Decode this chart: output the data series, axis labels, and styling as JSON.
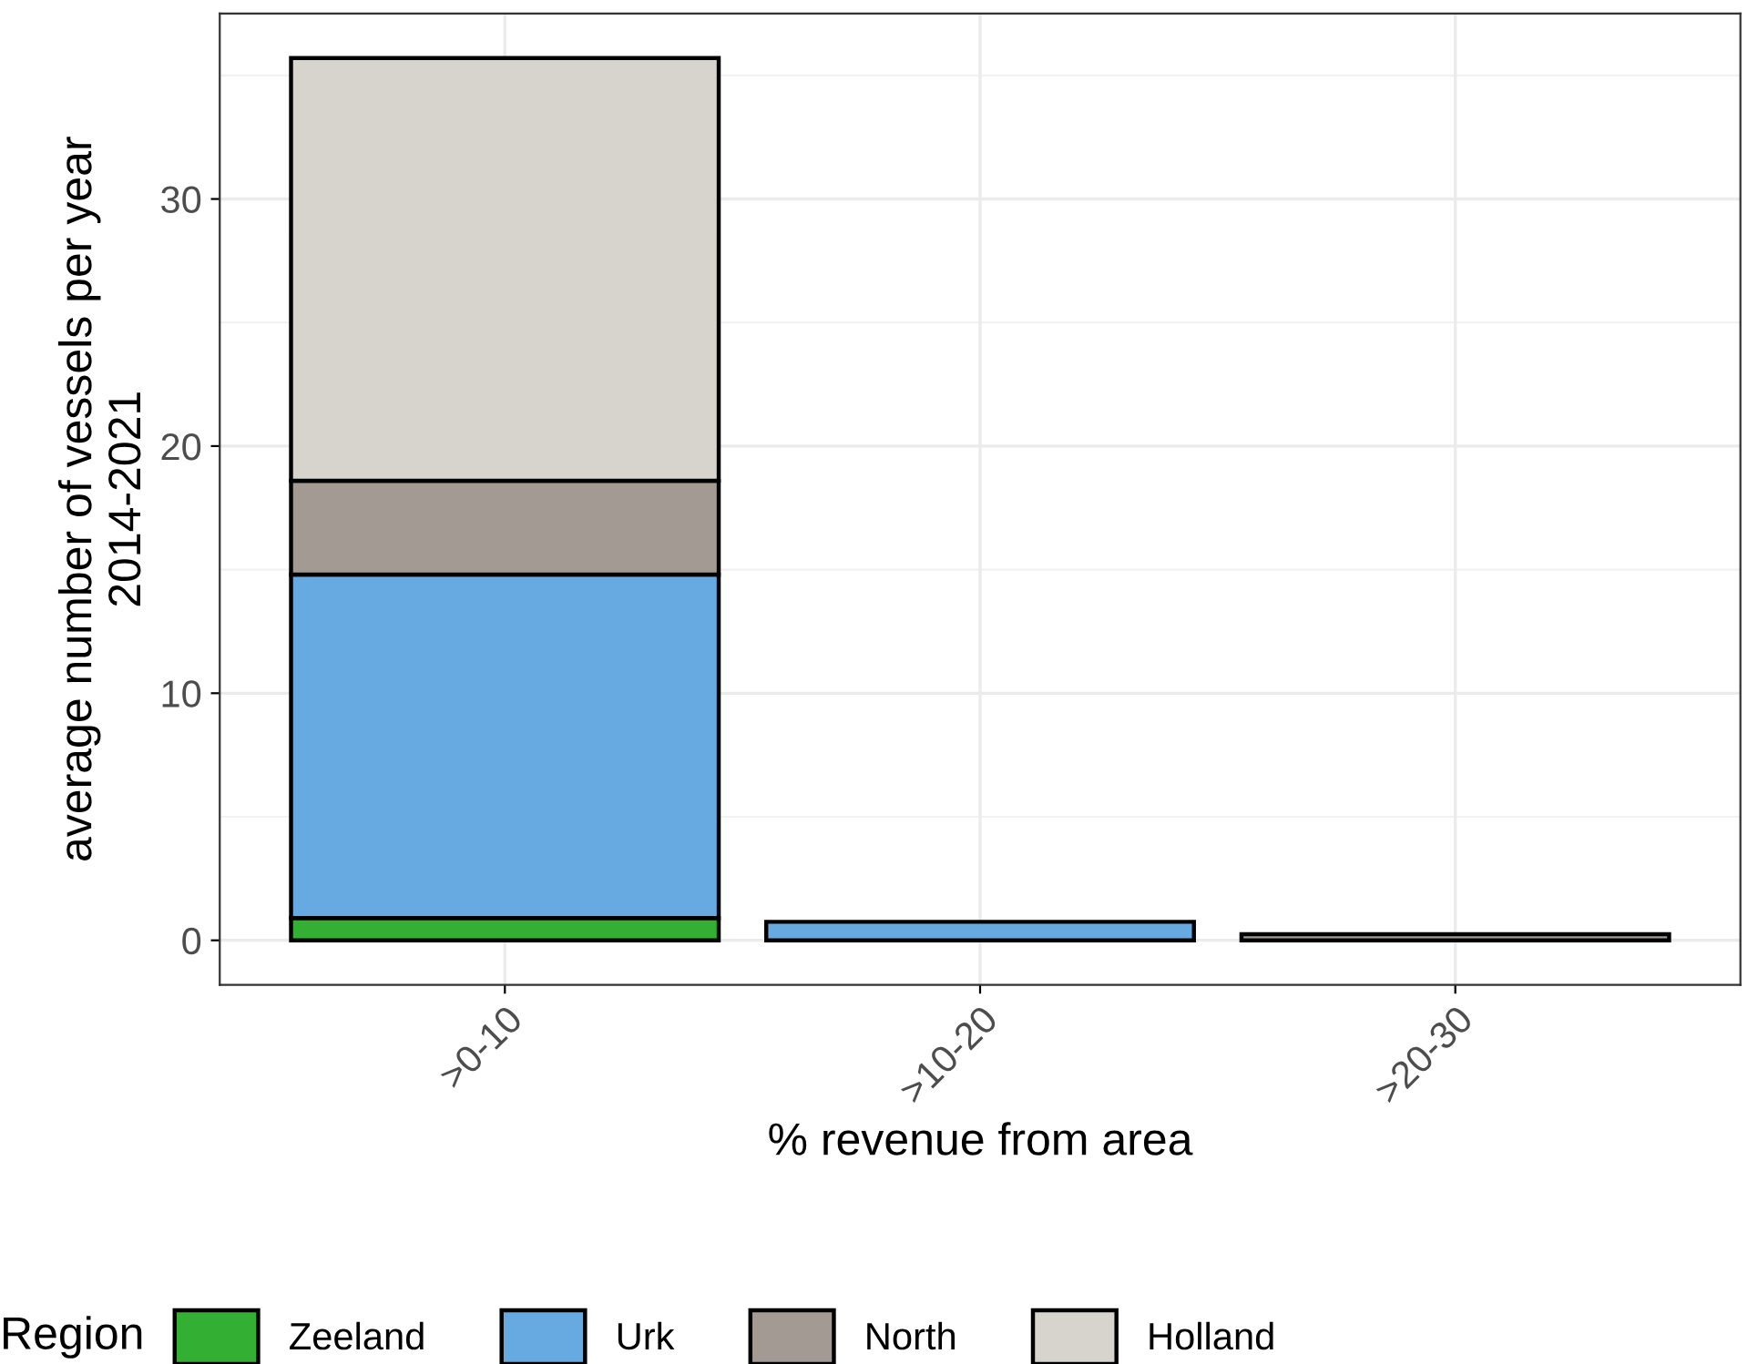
{
  "chart_data": {
    "type": "bar",
    "stacked": true,
    "xlabel": "% revenue from area",
    "ylabel": "average number of vessels per year\n2014-2021",
    "legend_title": "Region",
    "categories": [
      ">0-10",
      ">10-20",
      ">20-30"
    ],
    "series": [
      {
        "name": "Zeeland",
        "color": "#33b033",
        "values": [
          0.9,
          0,
          0
        ]
      },
      {
        "name": "Urk",
        "color": "#67aae2",
        "values": [
          13.9,
          0.75,
          0
        ]
      },
      {
        "name": "North",
        "color": "#a39a94",
        "values": [
          3.8,
          0,
          0.25
        ]
      },
      {
        "name": "Holland",
        "color": "#d6d4cc",
        "values": [
          17.1,
          0,
          0
        ]
      }
    ],
    "ylim": [
      -1.8,
      37.5
    ],
    "yticks": [
      0,
      10,
      20,
      30
    ],
    "grid": true,
    "legend": "bottom"
  }
}
